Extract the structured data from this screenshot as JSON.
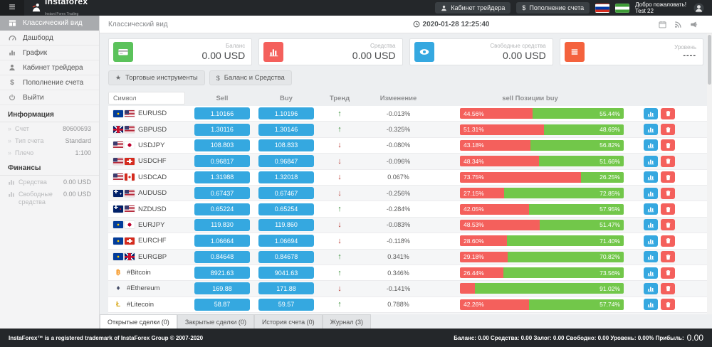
{
  "header": {
    "logo_title": "instaforex",
    "logo_subtitle": "Instant Forex Trading",
    "trader_cabinet_label": "Кабинет трейдера",
    "deposit_label": "Пополнение счета",
    "welcome_line1": "Добро пожаловать!",
    "welcome_line2": "Test 22",
    "flags": [
      "ru-flag",
      "green-flag"
    ]
  },
  "sidebar": {
    "menu": [
      {
        "label": "Классический вид",
        "icon": "grid-icon",
        "active": true
      },
      {
        "label": "Дашборд",
        "icon": "gauge-icon",
        "active": false
      },
      {
        "label": "График",
        "icon": "bars-icon",
        "active": false
      },
      {
        "label": "Кабинет трейдера",
        "icon": "user-icon",
        "active": false
      },
      {
        "label": "Пополнение счета",
        "icon": "dollar-icon",
        "active": false
      },
      {
        "label": "Выйти",
        "icon": "power-icon",
        "active": false
      }
    ],
    "info_title": "Информация",
    "info_rows": [
      {
        "label": "Счет",
        "value": "80600693"
      },
      {
        "label": "Тип счета",
        "value": "Standard"
      },
      {
        "label": "Плечо",
        "value": "1:100"
      }
    ],
    "finance_title": "Финансы",
    "finance_rows": [
      {
        "label": "Средства",
        "value": "0.00 USD",
        "icon": "bars-icon"
      },
      {
        "label": "Свободные средства",
        "value": "0.00 USD",
        "icon": "bars-icon"
      }
    ]
  },
  "topbar": {
    "title": "Классический вид",
    "datetime": "2020-01-28 12:25:40",
    "icons": [
      "calendar-icon",
      "rss-icon",
      "megaphone-icon"
    ]
  },
  "cards": [
    {
      "label": "Баланс",
      "value": "0.00 USD",
      "icon": "credit-card-icon",
      "color": "#5bc25b"
    },
    {
      "label": "Средства",
      "value": "0.00 USD",
      "icon": "chart-icon",
      "color": "#f4605c"
    },
    {
      "label": "Свободные средства",
      "value": "0.00 USD",
      "icon": "eye-icon",
      "color": "#35a8e0"
    },
    {
      "label": "Уровень",
      "value": "----",
      "icon": "list-icon",
      "color": "#f4623d"
    }
  ],
  "toolbar": {
    "instruments_label": "Торговые инструменты",
    "balance_label": "Баланс и Средства"
  },
  "table": {
    "search_placeholder": "Символ",
    "columns": {
      "sell": "Sell",
      "buy": "Buy",
      "trend": "Тренд",
      "change": "Изменение",
      "positions": "sell Позиции buy"
    },
    "rows": [
      {
        "symbol": "EURUSD",
        "flags": [
          "eu",
          "us"
        ],
        "sell": "1.10166",
        "buy": "1.10196",
        "trend": "up",
        "change": "-0.013%",
        "sell_pct": 44.56,
        "buy_pct": 55.44,
        "sell_label": "44.56%",
        "buy_label": "55.44%"
      },
      {
        "symbol": "GBPUSD",
        "flags": [
          "gb",
          "us"
        ],
        "sell": "1.30116",
        "buy": "1.30146",
        "trend": "up",
        "change": "-0.325%",
        "sell_pct": 51.31,
        "buy_pct": 48.69,
        "sell_label": "51.31%",
        "buy_label": "48.69%"
      },
      {
        "symbol": "USDJPY",
        "flags": [
          "us",
          "jp"
        ],
        "sell": "108.803",
        "buy": "108.833",
        "trend": "down",
        "change": "-0.080%",
        "sell_pct": 43.18,
        "buy_pct": 56.82,
        "sell_label": "43.18%",
        "buy_label": "56.82%"
      },
      {
        "symbol": "USDCHF",
        "flags": [
          "us",
          "ch"
        ],
        "sell": "0.96817",
        "buy": "0.96847",
        "trend": "down",
        "change": "-0.096%",
        "sell_pct": 48.34,
        "buy_pct": 51.66,
        "sell_label": "48.34%",
        "buy_label": "51.66%"
      },
      {
        "symbol": "USDCAD",
        "flags": [
          "us",
          "ca"
        ],
        "sell": "1.31988",
        "buy": "1.32018",
        "trend": "down",
        "change": "0.067%",
        "sell_pct": 73.75,
        "buy_pct": 26.25,
        "sell_label": "73.75%",
        "buy_label": "26.25%"
      },
      {
        "symbol": "AUDUSD",
        "flags": [
          "au",
          "us"
        ],
        "sell": "0.67437",
        "buy": "0.67467",
        "trend": "down",
        "change": "-0.256%",
        "sell_pct": 27.15,
        "buy_pct": 72.85,
        "sell_label": "27.15%",
        "buy_label": "72.85%"
      },
      {
        "symbol": "NZDUSD",
        "flags": [
          "nz",
          "us"
        ],
        "sell": "0.65224",
        "buy": "0.65254",
        "trend": "up",
        "change": "-0.284%",
        "sell_pct": 42.05,
        "buy_pct": 57.95,
        "sell_label": "42.05%",
        "buy_label": "57.95%"
      },
      {
        "symbol": "EURJPY",
        "flags": [
          "eu",
          "jp"
        ],
        "sell": "119.830",
        "buy": "119.860",
        "trend": "down",
        "change": "-0.083%",
        "sell_pct": 48.53,
        "buy_pct": 51.47,
        "sell_label": "48.53%",
        "buy_label": "51.47%"
      },
      {
        "symbol": "EURCHF",
        "flags": [
          "eu",
          "ch"
        ],
        "sell": "1.06664",
        "buy": "1.06694",
        "trend": "down",
        "change": "-0.118%",
        "sell_pct": 28.6,
        "buy_pct": 71.4,
        "sell_label": "28.60%",
        "buy_label": "71.40%"
      },
      {
        "symbol": "EURGBP",
        "flags": [
          "eu",
          "gb"
        ],
        "sell": "0.84648",
        "buy": "0.84678",
        "trend": "up",
        "change": "0.341%",
        "sell_pct": 29.18,
        "buy_pct": 70.82,
        "sell_label": "29.18%",
        "buy_label": "70.82%"
      },
      {
        "symbol": "#Bitcoin",
        "crypto": {
          "char": "฿",
          "color": "#f7931a"
        },
        "sell": "8921.63",
        "buy": "9041.63",
        "trend": "up",
        "change": "0.346%",
        "sell_pct": 26.44,
        "buy_pct": 73.56,
        "sell_label": "26.44%",
        "buy_label": "73.56%"
      },
      {
        "symbol": "#Ethereum",
        "crypto": {
          "char": "♦",
          "color": "#444b66"
        },
        "sell": "169.88",
        "buy": "171.88",
        "trend": "down",
        "change": "-0.141%",
        "sell_pct": 8.98,
        "buy_pct": 91.02,
        "sell_label": "",
        "buy_label": "91.02%"
      },
      {
        "symbol": "#Litecoin",
        "crypto": {
          "char": "Ł",
          "color": "#d7a613"
        },
        "sell": "58.87",
        "buy": "59.57",
        "trend": "up",
        "change": "0.788%",
        "sell_pct": 42.26,
        "buy_pct": 57.74,
        "sell_label": "42.26%",
        "buy_label": "57.74%"
      }
    ],
    "partial_row": {
      "sell_pct": 3,
      "buy_pct": 97
    }
  },
  "tabs": [
    {
      "label": "Открытые сделки (0)",
      "active": true
    },
    {
      "label": "Закрытые сделки (0)",
      "active": false
    },
    {
      "label": "История счета (0)",
      "active": false
    },
    {
      "label": "Журнал (3)",
      "active": false
    }
  ],
  "footer": {
    "left": "InstaForex™ is a registered trademark of InstaForex Group © 2007-2020",
    "right_label": "Баланс: 0.00 Средства: 0.00 Залог: 0.00 Свободно: 0.00 Уровень: 0.00% Прибыль:",
    "right_value": "0.00"
  }
}
